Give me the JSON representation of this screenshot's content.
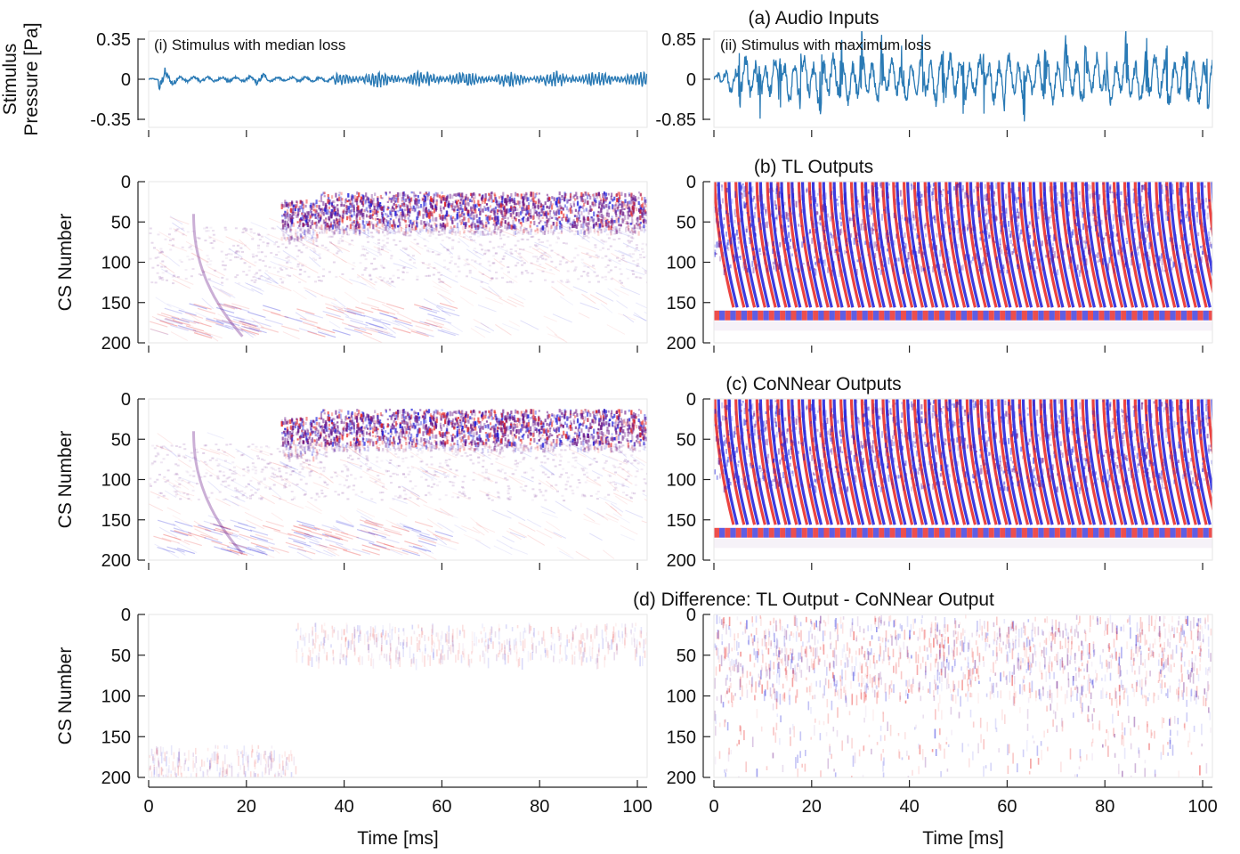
{
  "chart_data": {
    "type": "line+heatmap",
    "colors": {
      "waveform": "#2a7ab5",
      "positive": "#e8221f",
      "negative": "#1a1ad9",
      "combined": "#6b1a8a",
      "background": "#ffffff"
    },
    "panel_titles": {
      "a": "(a) Audio Inputs",
      "b": "(b) TL Outputs",
      "c": "(c) CoNNear Outputs",
      "d": "(d) Difference: TL Output - CoNNear Output"
    },
    "columns": [
      {
        "id": "i",
        "annotation": "(i) Stimulus with median loss",
        "y_ticks": [
          "0.35",
          "0",
          "-0.35"
        ],
        "y_range": [
          -0.35,
          0.35
        ]
      },
      {
        "id": "ii",
        "annotation": "(ii) Stimulus with maximum loss",
        "y_ticks": [
          "0.85",
          "0",
          "-0.85"
        ],
        "y_range": [
          -0.85,
          0.85
        ]
      }
    ],
    "waveform_ylabel": [
      "Stimulus",
      "Pressure [Pa]"
    ],
    "heatmap_ylabel": "CS Number",
    "xlabel": "Time [ms]",
    "x_range": [
      0,
      102
    ],
    "x_ticks": [
      "0",
      "20",
      "40",
      "60",
      "80",
      "100"
    ],
    "cs_range": [
      0,
      200
    ],
    "cs_ticks": [
      "0",
      "50",
      "100",
      "150",
      "200"
    ]
  }
}
